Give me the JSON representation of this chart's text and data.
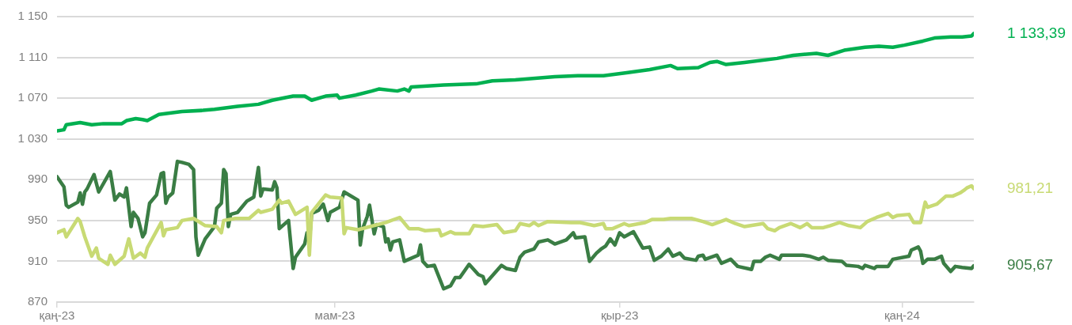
{
  "chart_data": {
    "type": "line",
    "xlim": [
      "2023-01-01",
      "2024-02-01"
    ],
    "xticks": [
      {
        "value": "2023-01-01",
        "label": "қаң-23"
      },
      {
        "value": "2023-05-01",
        "label": "мам-23"
      },
      {
        "value": "2023-09-01",
        "label": "қыр-23"
      },
      {
        "value": "2024-01-01",
        "label": "қаң-24"
      }
    ],
    "ylim": [
      870,
      1150
    ],
    "yticks": [
      {
        "value": 870,
        "label": "870"
      },
      {
        "value": 910,
        "label": "910"
      },
      {
        "value": 950,
        "label": "950"
      },
      {
        "value": 990,
        "label": "990"
      },
      {
        "value": 1030,
        "label": "1 030"
      },
      {
        "value": 1070,
        "label": "1 070"
      },
      {
        "value": 1110,
        "label": "1 110"
      },
      {
        "value": 1150,
        "label": "1 150"
      }
    ],
    "grid": "y",
    "legend": false,
    "marker": "none",
    "line_style": "solid",
    "series": [
      {
        "color": "#00b050",
        "x": [
          "2023-01-01",
          "2023-01-04",
          "2023-01-05",
          "2023-01-11",
          "2023-01-16",
          "2023-01-21",
          "2023-01-29",
          "2023-01-31",
          "2023-02-04",
          "2023-02-07",
          "2023-02-09",
          "2023-02-14",
          "2023-02-24",
          "2023-03-05",
          "2023-03-10",
          "2023-03-20",
          "2023-03-29",
          "2023-04-04",
          "2023-04-13",
          "2023-04-18",
          "2023-04-21",
          "2023-04-27",
          "2023-05-02",
          "2023-05-03",
          "2023-05-10",
          "2023-05-17",
          "2023-05-20",
          "2023-05-28",
          "2023-05-31",
          "2023-06-02",
          "2023-06-03",
          "2023-06-17",
          "2023-07-01",
          "2023-07-08",
          "2023-07-18",
          "2023-08-04",
          "2023-08-14",
          "2023-08-25",
          "2023-09-04",
          "2023-09-14",
          "2023-09-23",
          "2023-09-26",
          "2023-10-05",
          "2023-10-10",
          "2023-10-13",
          "2023-10-17",
          "2023-10-25",
          "2023-11-08",
          "2023-11-15",
          "2023-11-25",
          "2023-11-30",
          "2023-12-07",
          "2023-12-16",
          "2023-12-22",
          "2023-12-28",
          "2024-01-02",
          "2024-01-10",
          "2024-01-15",
          "2024-01-22",
          "2024-01-27",
          "2024-01-31",
          "2024-02-01"
        ],
        "values": [
          1038,
          1039,
          1044,
          1046,
          1044,
          1045,
          1045,
          1048,
          1050,
          1049,
          1048,
          1054,
          1057,
          1058,
          1059,
          1062,
          1064,
          1068,
          1072,
          1072,
          1068,
          1072,
          1073,
          1070,
          1073,
          1077,
          1079,
          1077,
          1079,
          1077,
          1081,
          1083,
          1084,
          1087,
          1088,
          1091,
          1092,
          1092,
          1095,
          1098,
          1102,
          1099,
          1100,
          1105,
          1106,
          1103,
          1105,
          1109,
          1112,
          1114,
          1112,
          1117,
          1120,
          1121,
          1120,
          1122,
          1126,
          1129,
          1130,
          1130,
          1131,
          1133.39
        ]
      },
      {
        "color": "#c8da74",
        "x": [
          "2023-01-01",
          "2023-01-04",
          "2023-01-05",
          "2023-01-10",
          "2023-01-11",
          "2023-01-13",
          "2023-01-16",
          "2023-01-18",
          "2023-01-19",
          "2023-01-23",
          "2023-01-24",
          "2023-01-26",
          "2023-01-30",
          "2023-02-01",
          "2023-02-03",
          "2023-02-06",
          "2023-02-08",
          "2023-02-09",
          "2023-02-15",
          "2023-02-16",
          "2023-02-17",
          "2023-02-22",
          "2023-02-24",
          "2023-03-01",
          "2023-03-06",
          "2023-03-11",
          "2023-03-13",
          "2023-03-14",
          "2023-03-19",
          "2023-03-25",
          "2023-03-29",
          "2023-03-30",
          "2023-04-04",
          "2023-04-07",
          "2023-04-08",
          "2023-04-11",
          "2023-04-14",
          "2023-04-19",
          "2023-04-20",
          "2023-04-21",
          "2023-04-27",
          "2023-04-29",
          "2023-05-04",
          "2023-05-05",
          "2023-05-06",
          "2023-05-11",
          "2023-05-23",
          "2023-05-29",
          "2023-06-02",
          "2023-06-06",
          "2023-06-09",
          "2023-06-15",
          "2023-06-16",
          "2023-06-20",
          "2023-06-22",
          "2023-06-28",
          "2023-06-30",
          "2023-07-04",
          "2023-07-10",
          "2023-07-13",
          "2023-07-18",
          "2023-07-20",
          "2023-07-24",
          "2023-07-26",
          "2023-07-28",
          "2023-08-01",
          "2023-08-11",
          "2023-08-15",
          "2023-08-21",
          "2023-08-25",
          "2023-08-26",
          "2023-08-29",
          "2023-09-03",
          "2023-09-05",
          "2023-09-12",
          "2023-09-15",
          "2023-09-20",
          "2023-09-23",
          "2023-10-02",
          "2023-10-07",
          "2023-10-11",
          "2023-10-17",
          "2023-10-21",
          "2023-10-25",
          "2023-11-02",
          "2023-11-04",
          "2023-11-07",
          "2023-11-09",
          "2023-11-14",
          "2023-11-18",
          "2023-11-21",
          "2023-11-23",
          "2023-11-28",
          "2023-12-01",
          "2023-12-05",
          "2023-12-09",
          "2023-12-14",
          "2023-12-17",
          "2023-12-21",
          "2023-12-26",
          "2023-12-28",
          "2023-12-30",
          "2024-01-04",
          "2024-01-06",
          "2024-01-09",
          "2024-01-11",
          "2024-01-12",
          "2024-01-16",
          "2024-01-20",
          "2024-01-23",
          "2024-01-26",
          "2024-01-28",
          "2024-01-29",
          "2024-01-31",
          "2024-02-01"
        ],
        "values": [
          938,
          941,
          934,
          952,
          949,
          934,
          915,
          923,
          913,
          907,
          916,
          907,
          915,
          932,
          913,
          918,
          914,
          923,
          948,
          935,
          941,
          943,
          950,
          952,
          945,
          944,
          938,
          950,
          952,
          952,
          960,
          958,
          961,
          970,
          967,
          969,
          956,
          963,
          916,
          958,
          975,
          973,
          972,
          937,
          943,
          941,
          948,
          953,
          942,
          942,
          940,
          941,
          935,
          939,
          937,
          937,
          945,
          944,
          946,
          938,
          940,
          947,
          945,
          948,
          945,
          949,
          948,
          948,
          945,
          947,
          942,
          942,
          947,
          945,
          948,
          951,
          951,
          952,
          952,
          949,
          946,
          951,
          947,
          944,
          947,
          942,
          940,
          943,
          947,
          943,
          947,
          943,
          943,
          945,
          948,
          945,
          943,
          949,
          953,
          957,
          953,
          955,
          956,
          948,
          948,
          968,
          963,
          966,
          974,
          974,
          977,
          980,
          982,
          984,
          981.21
        ]
      },
      {
        "color": "#3a7d44",
        "x": [
          "2023-01-01",
          "2023-01-04",
          "2023-01-05",
          "2023-01-06",
          "2023-01-10",
          "2023-01-11",
          "2023-01-12",
          "2023-01-13",
          "2023-01-14",
          "2023-01-17",
          "2023-01-19",
          "2023-01-24",
          "2023-01-26",
          "2023-01-28",
          "2023-01-30",
          "2023-01-31",
          "2023-02-02",
          "2023-02-03",
          "2023-02-05",
          "2023-02-07",
          "2023-02-08",
          "2023-02-10",
          "2023-02-13",
          "2023-02-15",
          "2023-02-16",
          "2023-02-17",
          "2023-02-18",
          "2023-02-20",
          "2023-02-22",
          "2023-02-24",
          "2023-02-27",
          "2023-03-01",
          "2023-03-02",
          "2023-03-03",
          "2023-03-06",
          "2023-03-08",
          "2023-03-10",
          "2023-03-11",
          "2023-03-13",
          "2023-03-14",
          "2023-03-15",
          "2023-03-16",
          "2023-03-17",
          "2023-03-20",
          "2023-03-24",
          "2023-03-27",
          "2023-03-29",
          "2023-03-30",
          "2023-03-31",
          "2023-04-04",
          "2023-04-05",
          "2023-04-06",
          "2023-04-07",
          "2023-04-11",
          "2023-04-13",
          "2023-04-14",
          "2023-04-18",
          "2023-04-19",
          "2023-04-20",
          "2023-04-21",
          "2023-04-24",
          "2023-04-26",
          "2023-04-28",
          "2023-04-29",
          "2023-05-03",
          "2023-05-05",
          "2023-05-11",
          "2023-05-12",
          "2023-05-13",
          "2023-05-15",
          "2023-05-16",
          "2023-05-18",
          "2023-05-19",
          "2023-05-22",
          "2023-05-23",
          "2023-05-24",
          "2023-05-25",
          "2023-05-26",
          "2023-05-29",
          "2023-05-31",
          "2023-06-02",
          "2023-06-06",
          "2023-06-07",
          "2023-06-08",
          "2023-06-10",
          "2023-06-13",
          "2023-06-17",
          "2023-06-20",
          "2023-06-22",
          "2023-06-24",
          "2023-06-28",
          "2023-07-02",
          "2023-07-04",
          "2023-07-05",
          "2023-07-12",
          "2023-07-14",
          "2023-07-18",
          "2023-07-20",
          "2023-07-22",
          "2023-07-26",
          "2023-07-28",
          "2023-08-01",
          "2023-08-04",
          "2023-08-09",
          "2023-08-12",
          "2023-08-13",
          "2023-08-17",
          "2023-08-19",
          "2023-08-22",
          "2023-08-24",
          "2023-08-26",
          "2023-08-28",
          "2023-08-30",
          "2023-09-01",
          "2023-09-03",
          "2023-09-07",
          "2023-09-11",
          "2023-09-14",
          "2023-09-16",
          "2023-09-19",
          "2023-09-22",
          "2023-09-24",
          "2023-09-27",
          "2023-09-29",
          "2023-10-04",
          "2023-10-05",
          "2023-10-07",
          "2023-10-08",
          "2023-10-13",
          "2023-10-15",
          "2023-10-19",
          "2023-10-22",
          "2023-10-28",
          "2023-10-29",
          "2023-11-01",
          "2023-11-03",
          "2023-11-05",
          "2023-11-09",
          "2023-11-10",
          "2023-11-19",
          "2023-11-22",
          "2023-11-26",
          "2023-11-28",
          "2023-11-30",
          "2023-12-06",
          "2023-12-08",
          "2023-12-13",
          "2023-12-15",
          "2023-12-16",
          "2023-12-20",
          "2023-12-21",
          "2023-12-26",
          "2023-12-28",
          "2024-01-04",
          "2024-01-05",
          "2024-01-08",
          "2024-01-09",
          "2024-01-10",
          "2024-01-12",
          "2024-01-15",
          "2024-01-18",
          "2024-01-19",
          "2024-01-22",
          "2024-01-24",
          "2024-01-27",
          "2024-01-31",
          "2024-02-01"
        ],
        "values": [
          993,
          983,
          965,
          963,
          968,
          977,
          966,
          978,
          981,
          995,
          978,
          998,
          970,
          976,
          973,
          982,
          944,
          958,
          952,
          934,
          938,
          967,
          975,
          996,
          997,
          967,
          973,
          977,
          1008,
          1007,
          1005,
          1000,
          934,
          916,
          932,
          938,
          944,
          962,
          967,
          1000,
          996,
          944,
          956,
          958,
          969,
          973,
          1002,
          974,
          981,
          980,
          988,
          982,
          942,
          950,
          903,
          914,
          927,
          938,
          930,
          957,
          960,
          966,
          950,
          958,
          963,
          978,
          970,
          926,
          942,
          954,
          965,
          937,
          946,
          944,
          929,
          932,
          921,
          929,
          931,
          910,
          912,
          916,
          926,
          910,
          905,
          906,
          883,
          886,
          894,
          894,
          907,
          897,
          895,
          888,
          906,
          903,
          901,
          914,
          919,
          922,
          929,
          931,
          927,
          931,
          938,
          933,
          934,
          910,
          918,
          922,
          925,
          932,
          926,
          938,
          934,
          939,
          923,
          924,
          911,
          915,
          922,
          915,
          918,
          913,
          911,
          915,
          916,
          912,
          916,
          908,
          912,
          905,
          902,
          910,
          910,
          914,
          916,
          912,
          916,
          916,
          915,
          912,
          914,
          911,
          910,
          906,
          905,
          903,
          906,
          903,
          905,
          905,
          912,
          915,
          921,
          924,
          920,
          908,
          912,
          912,
          915,
          908,
          900,
          905,
          904,
          903,
          905.67
        ]
      }
    ],
    "annotations": [
      {
        "text": "1 133,39",
        "x": "2024-02-01",
        "y": 1133.39
      },
      {
        "text": "981,21",
        "x": "2024-02-01",
        "y": 981.21
      },
      {
        "text": "905,67",
        "x": "2024-02-01",
        "y": 905.67
      }
    ]
  }
}
